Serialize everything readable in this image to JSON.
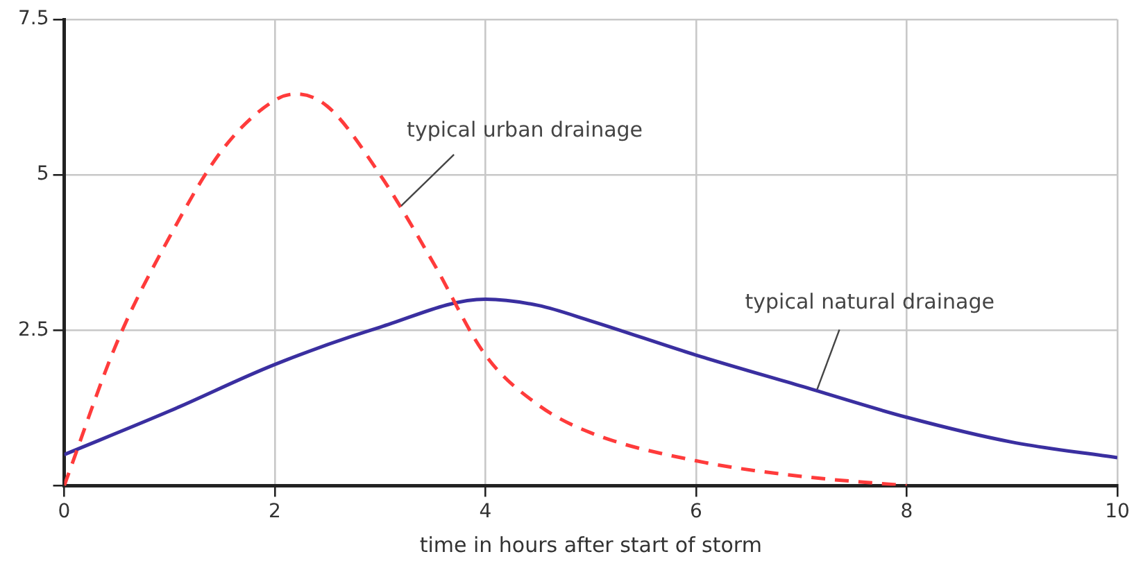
{
  "chart_data": {
    "type": "line",
    "xlabel": "time in hours after start of storm",
    "xlim": [
      0,
      10
    ],
    "ylim": [
      0,
      7.5
    ],
    "xticks": [
      0,
      2,
      4,
      6,
      8,
      10
    ],
    "yticks": [
      {
        "value": 0,
        "label": null
      },
      2.5,
      5,
      7.5
    ],
    "grid": true,
    "legend": false,
    "marker": "none",
    "series": [
      {
        "color": "#ff3b3b",
        "line_style": "dashed",
        "x": [
          0,
          0.5,
          1,
          1.5,
          2,
          2.2,
          2.5,
          3,
          3.5,
          4,
          4.5,
          5,
          6,
          7,
          8
        ],
        "values": [
          0,
          2.3,
          4.0,
          5.4,
          6.2,
          6.3,
          6.1,
          5.0,
          3.6,
          2.1,
          1.3,
          0.85,
          0.4,
          0.15,
          0
        ]
      },
      {
        "color": "#3a2fa0",
        "line_style": "solid",
        "x": [
          0,
          1,
          2,
          3,
          4,
          4.5,
          5,
          6,
          7,
          8,
          9,
          10
        ],
        "values": [
          0.5,
          1.2,
          1.95,
          2.55,
          3.0,
          2.9,
          2.65,
          2.1,
          1.6,
          1.1,
          0.7,
          0.45
        ]
      }
    ],
    "annotations": [
      {
        "text": "typical urban drainage",
        "x": 3.2,
        "y": 4.5
      },
      {
        "text": "typical natural drainage",
        "x": 7.15,
        "y": 1.55
      }
    ]
  }
}
